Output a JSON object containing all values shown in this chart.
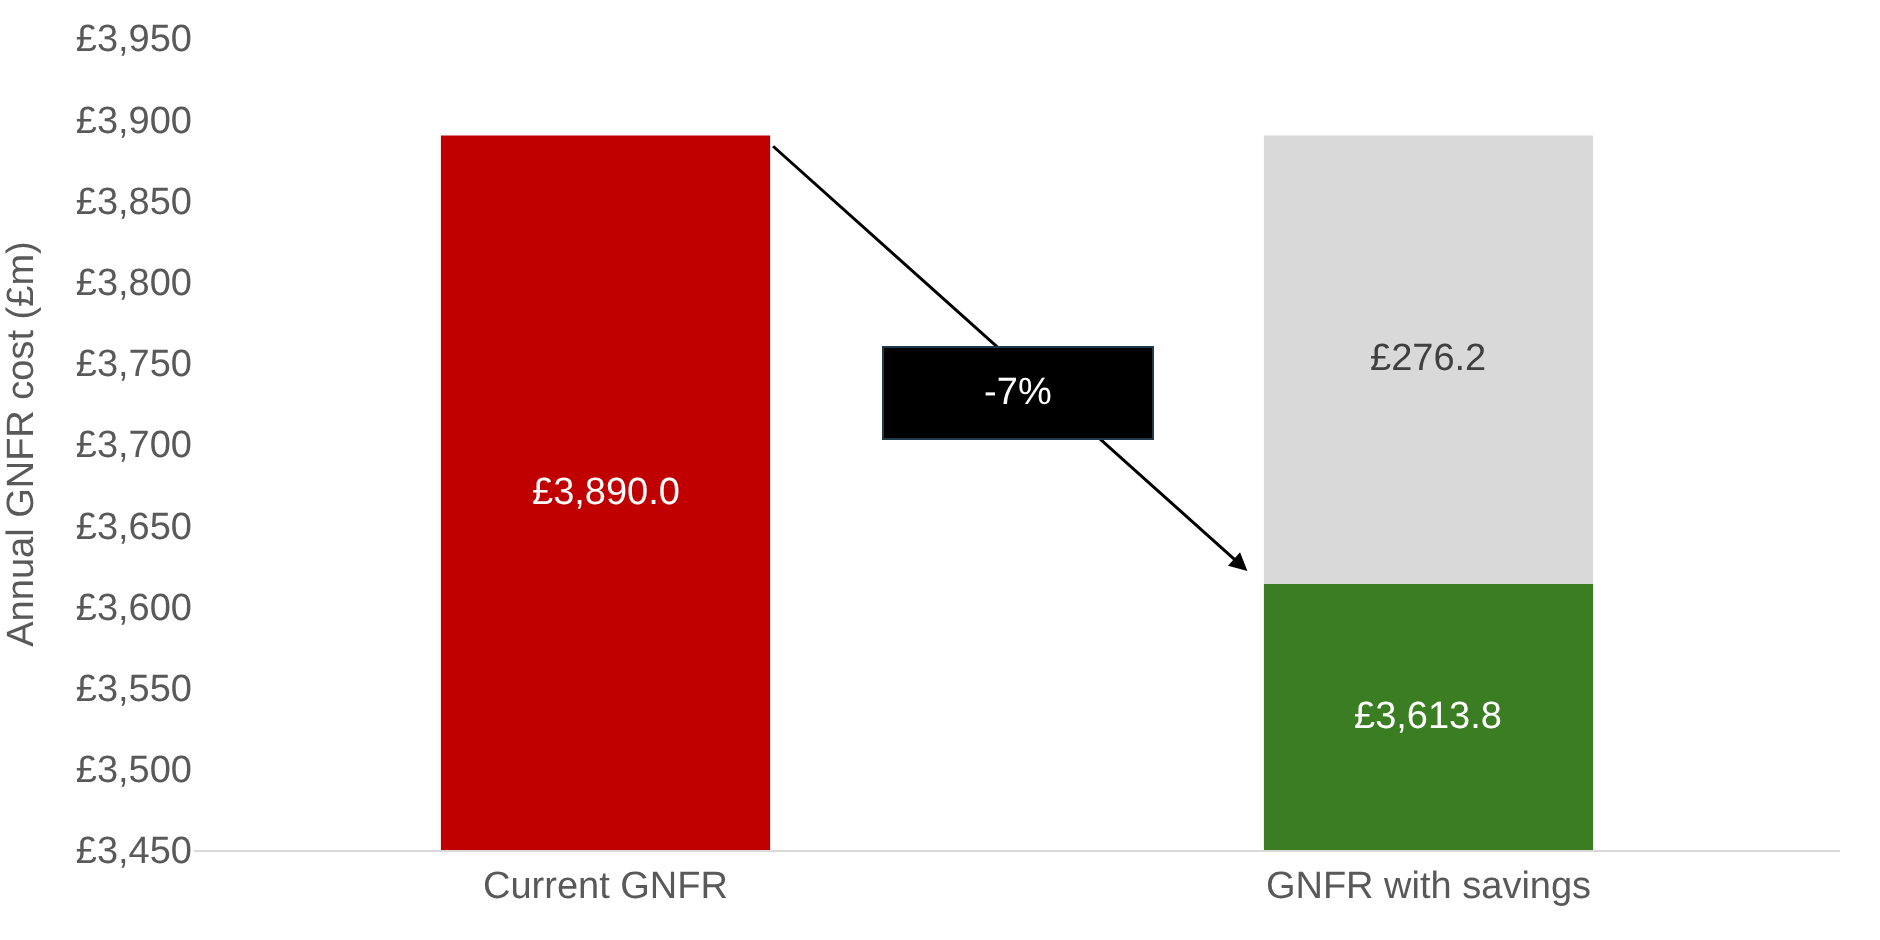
{
  "chart_data": {
    "type": "bar",
    "stacked": true,
    "ylabel": "Annual GNFR cost (£m)",
    "categories": [
      "Current GNFR",
      "GNFR with savings"
    ],
    "series": [
      {
        "colors": [
          "#c00000",
          "#3a7d22"
        ],
        "values": [
          3890.0,
          3613.8
        ],
        "value_labels": [
          "£3,890.0",
          "£3,613.8"
        ]
      },
      {
        "color": "#d9d9d9",
        "values": [
          null,
          276.2
        ],
        "base": [
          null,
          3613.8
        ],
        "value_labels": [
          null,
          "£276.2"
        ]
      }
    ],
    "ylim": [
      3450,
      3950
    ],
    "yticks": [
      {
        "value": 3450,
        "label": "£3,450"
      },
      {
        "value": 3500,
        "label": "£3,500"
      },
      {
        "value": 3550,
        "label": "£3,550"
      },
      {
        "value": 3600,
        "label": "£3,600"
      },
      {
        "value": 3650,
        "label": "£3,650"
      },
      {
        "value": 3700,
        "label": "£3,700"
      },
      {
        "value": 3750,
        "label": "£3,750"
      },
      {
        "value": 3800,
        "label": "£3,800"
      },
      {
        "value": 3850,
        "label": "£3,850"
      },
      {
        "value": 3900,
        "label": "£3,900"
      },
      {
        "value": 3950,
        "label": "£3,950"
      }
    ],
    "annotations": [
      "-7%"
    ],
    "grid": false
  }
}
